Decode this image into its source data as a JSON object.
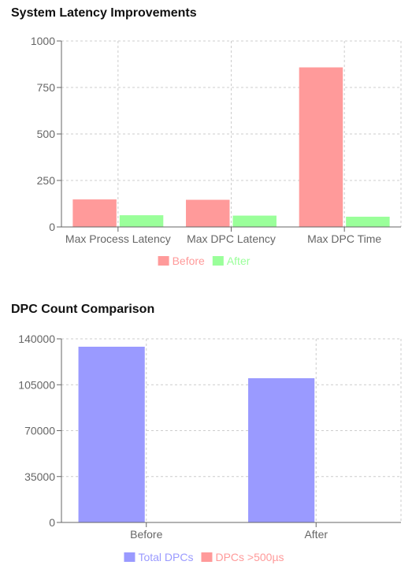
{
  "chart_data": [
    {
      "type": "bar",
      "title": "System Latency Improvements",
      "categories": [
        "Max Process Latency",
        "Max DPC Latency",
        "Max DPC Time"
      ],
      "series": [
        {
          "name": "Before",
          "color": "#ff9a9a",
          "values": [
            148,
            146,
            858
          ]
        },
        {
          "name": "After",
          "color": "#9aff9a",
          "values": [
            63,
            61,
            55
          ]
        }
      ],
      "ylim": [
        0,
        1000
      ],
      "yticks": [
        0,
        250,
        500,
        750,
        1000
      ],
      "grid": true,
      "legend": "bottom",
      "xlabel": "",
      "ylabel": ""
    },
    {
      "type": "bar",
      "title": "DPC Count Comparison",
      "categories": [
        "Before",
        "After"
      ],
      "series": [
        {
          "name": "Total DPCs",
          "color": "#9a9aff",
          "values": [
            134000,
            110000
          ]
        },
        {
          "name": "DPCs >500µs",
          "color": "#ff9a9a",
          "values": [
            0,
            0
          ]
        }
      ],
      "ylim": [
        0,
        140000
      ],
      "yticks": [
        0,
        35000,
        70000,
        105000,
        140000
      ],
      "grid": true,
      "legend": "bottom",
      "xlabel": "",
      "ylabel": ""
    }
  ]
}
